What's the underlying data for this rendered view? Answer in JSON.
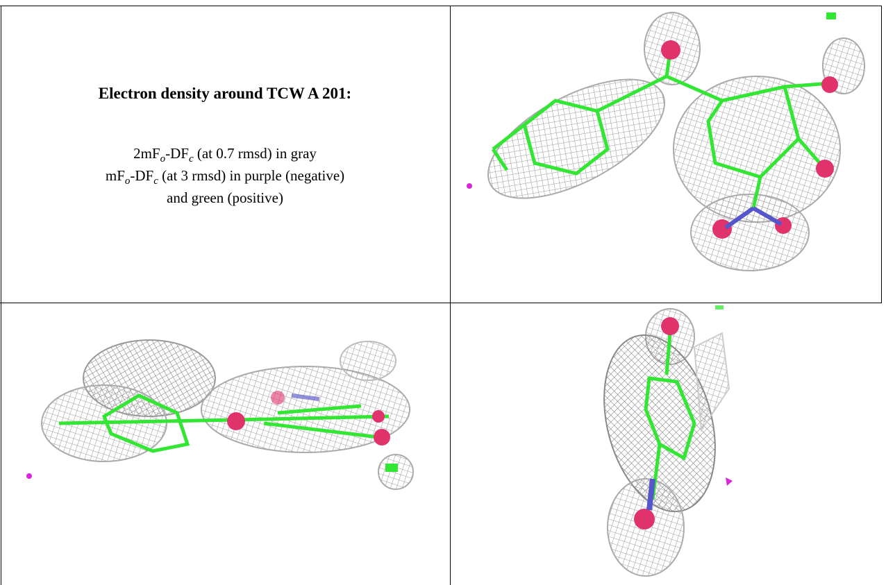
{
  "figure": {
    "title": "Electron density around TCW A 201:",
    "legend": [
      [
        "2mF",
        "o",
        "-DF",
        "c",
        " (at 0.7 rmsd) in gray"
      ],
      [
        "mF",
        "o",
        "-DF",
        "c",
        " (at 3 rmsd) in purple (negative)"
      ],
      [
        "and green (positive)"
      ]
    ]
  }
}
